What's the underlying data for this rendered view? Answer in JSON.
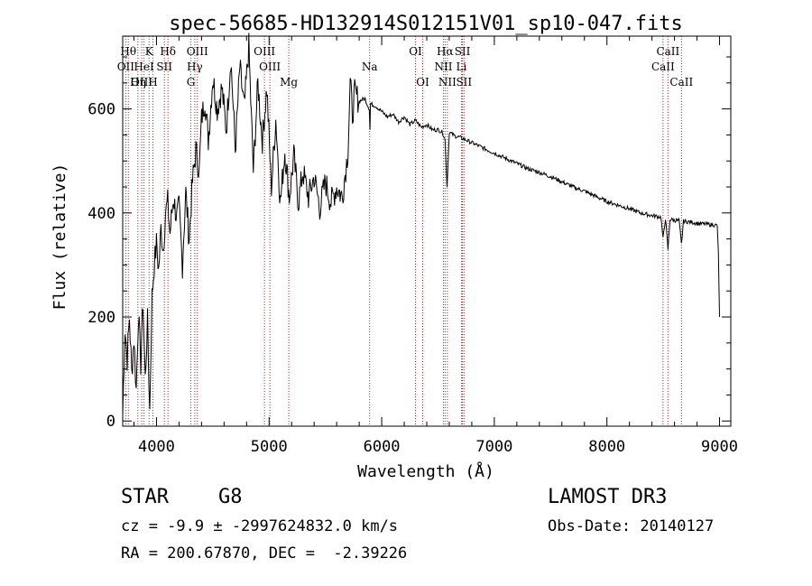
{
  "chart_data": {
    "type": "line",
    "title": "spec-56685-HD132914S012151V01_sp10-047.fits",
    "xlabel": "Wavelength (Å)",
    "ylabel": "Flux (relative)",
    "xlim": [
      3700,
      9100
    ],
    "ylim": [
      -10,
      740
    ],
    "x_ticks": [
      4000,
      5000,
      6000,
      7000,
      8000,
      9000
    ],
    "y_ticks": [
      0,
      200,
      400,
      600
    ],
    "series": [
      {
        "name": "flux",
        "x": [
          3700,
          3720,
          3740,
          3760,
          3780,
          3800,
          3820,
          3840,
          3860,
          3880,
          3900,
          3920,
          3940,
          3960,
          3980,
          4000,
          4020,
          4040,
          4060,
          4080,
          4100,
          4120,
          4150,
          4180,
          4200,
          4230,
          4260,
          4290,
          4320,
          4350,
          4380,
          4400,
          4430,
          4460,
          4500,
          4540,
          4580,
          4620,
          4660,
          4700,
          4740,
          4780,
          4820,
          4860,
          4900,
          4940,
          4980,
          5020,
          5060,
          5100,
          5140,
          5180,
          5220,
          5260,
          5300,
          5350,
          5400,
          5450,
          5500,
          5550,
          5600,
          5650,
          5700,
          5720,
          5740,
          5760,
          5800,
          5850,
          5890,
          5896,
          5900,
          5950,
          6000,
          6050,
          6100,
          6150,
          6200,
          6250,
          6300,
          6350,
          6400,
          6450,
          6500,
          6540,
          6563,
          6580,
          6600,
          6650,
          6700,
          6750,
          6800,
          6850,
          6900,
          6950,
          7000,
          7100,
          7200,
          7300,
          7400,
          7500,
          7600,
          7700,
          7800,
          7900,
          8000,
          8100,
          8200,
          8300,
          8400,
          8480,
          8498,
          8520,
          8542,
          8560,
          8600,
          8640,
          8662,
          8680,
          8720,
          8760,
          8800,
          8850,
          8900,
          8950,
          8980,
          8990,
          9000
        ],
        "values": [
          10,
          180,
          120,
          200,
          90,
          160,
          60,
          210,
          110,
          230,
          80,
          190,
          20,
          240,
          300,
          340,
          290,
          370,
          330,
          400,
          420,
          360,
          430,
          390,
          410,
          300,
          440,
          350,
          460,
          520,
          480,
          580,
          620,
          540,
          660,
          600,
          640,
          560,
          700,
          520,
          680,
          600,
          720,
          480,
          650,
          540,
          640,
          450,
          580,
          420,
          520,
          430,
          510,
          420,
          480,
          430,
          470,
          410,
          460,
          420,
          450,
          430,
          520,
          650,
          590,
          630,
          615,
          620,
          600,
          560,
          610,
          605,
          595,
          585,
          590,
          575,
          585,
          570,
          578,
          565,
          570,
          560,
          560,
          555,
          540,
          450,
          555,
          548,
          545,
          540,
          535,
          530,
          525,
          520,
          515,
          505,
          495,
          485,
          478,
          470,
          460,
          450,
          442,
          432,
          422,
          415,
          408,
          400,
          395,
          392,
          350,
          390,
          330,
          388,
          386,
          385,
          340,
          384,
          383,
          382,
          380,
          379,
          378,
          377,
          376,
          320,
          200
        ]
      }
    ],
    "lines": [
      {
        "label": "Hθ",
        "x": 3750,
        "row": 1
      },
      {
        "label": "K",
        "x": 3934,
        "row": 1
      },
      {
        "label": "Hδ",
        "x": 4102,
        "row": 1
      },
      {
        "label": "OIII",
        "x": 4363,
        "row": 1
      },
      {
        "label": "OIII",
        "x": 4959,
        "row": 1
      },
      {
        "label": "OI",
        "x": 6300,
        "row": 1
      },
      {
        "label": "Hα",
        "x": 6563,
        "row": 1
      },
      {
        "label": "SII",
        "x": 6717,
        "row": 1
      },
      {
        "label": "CaII",
        "x": 8542,
        "row": 1
      },
      {
        "label": "OII",
        "x": 3727,
        "row": 2
      },
      {
        "label": "HeI",
        "x": 3889,
        "row": 2
      },
      {
        "label": "SII",
        "x": 4070,
        "row": 2
      },
      {
        "label": "Hγ",
        "x": 4340,
        "row": 2
      },
      {
        "label": "OIII",
        "x": 5007,
        "row": 2
      },
      {
        "label": "Na",
        "x": 5893,
        "row": 2
      },
      {
        "label": "NII",
        "x": 6548,
        "row": 2
      },
      {
        "label": "Li",
        "x": 6708,
        "row": 2
      },
      {
        "label": "CaII",
        "x": 8498,
        "row": 2
      },
      {
        "label": "OIII",
        "x": 3869,
        "row": 3
      },
      {
        "label": "Hη",
        "x": 3835,
        "row": 3
      },
      {
        "label": "H",
        "x": 3968,
        "row": 3
      },
      {
        "label": "G",
        "x": 4305,
        "row": 3
      },
      {
        "label": "Mg",
        "x": 5175,
        "row": 3
      },
      {
        "label": "OI",
        "x": 6364,
        "row": 3
      },
      {
        "label": "NII",
        "x": 6583,
        "row": 3
      },
      {
        "label": "SII",
        "x": 6731,
        "row": 3
      },
      {
        "label": "CaII",
        "x": 8662,
        "row": 3
      }
    ],
    "line_color": "#b22222",
    "flux_color": "#000000"
  },
  "info": {
    "obj_class": "STAR",
    "subclass": "G8",
    "survey": "LAMOST DR3",
    "cz": "cz = -9.9 ± -2997624832.0 km/s",
    "obs_date": "Obs-Date: 20140127",
    "coords": "RA = 200.67870, DEC =  -2.39226"
  }
}
